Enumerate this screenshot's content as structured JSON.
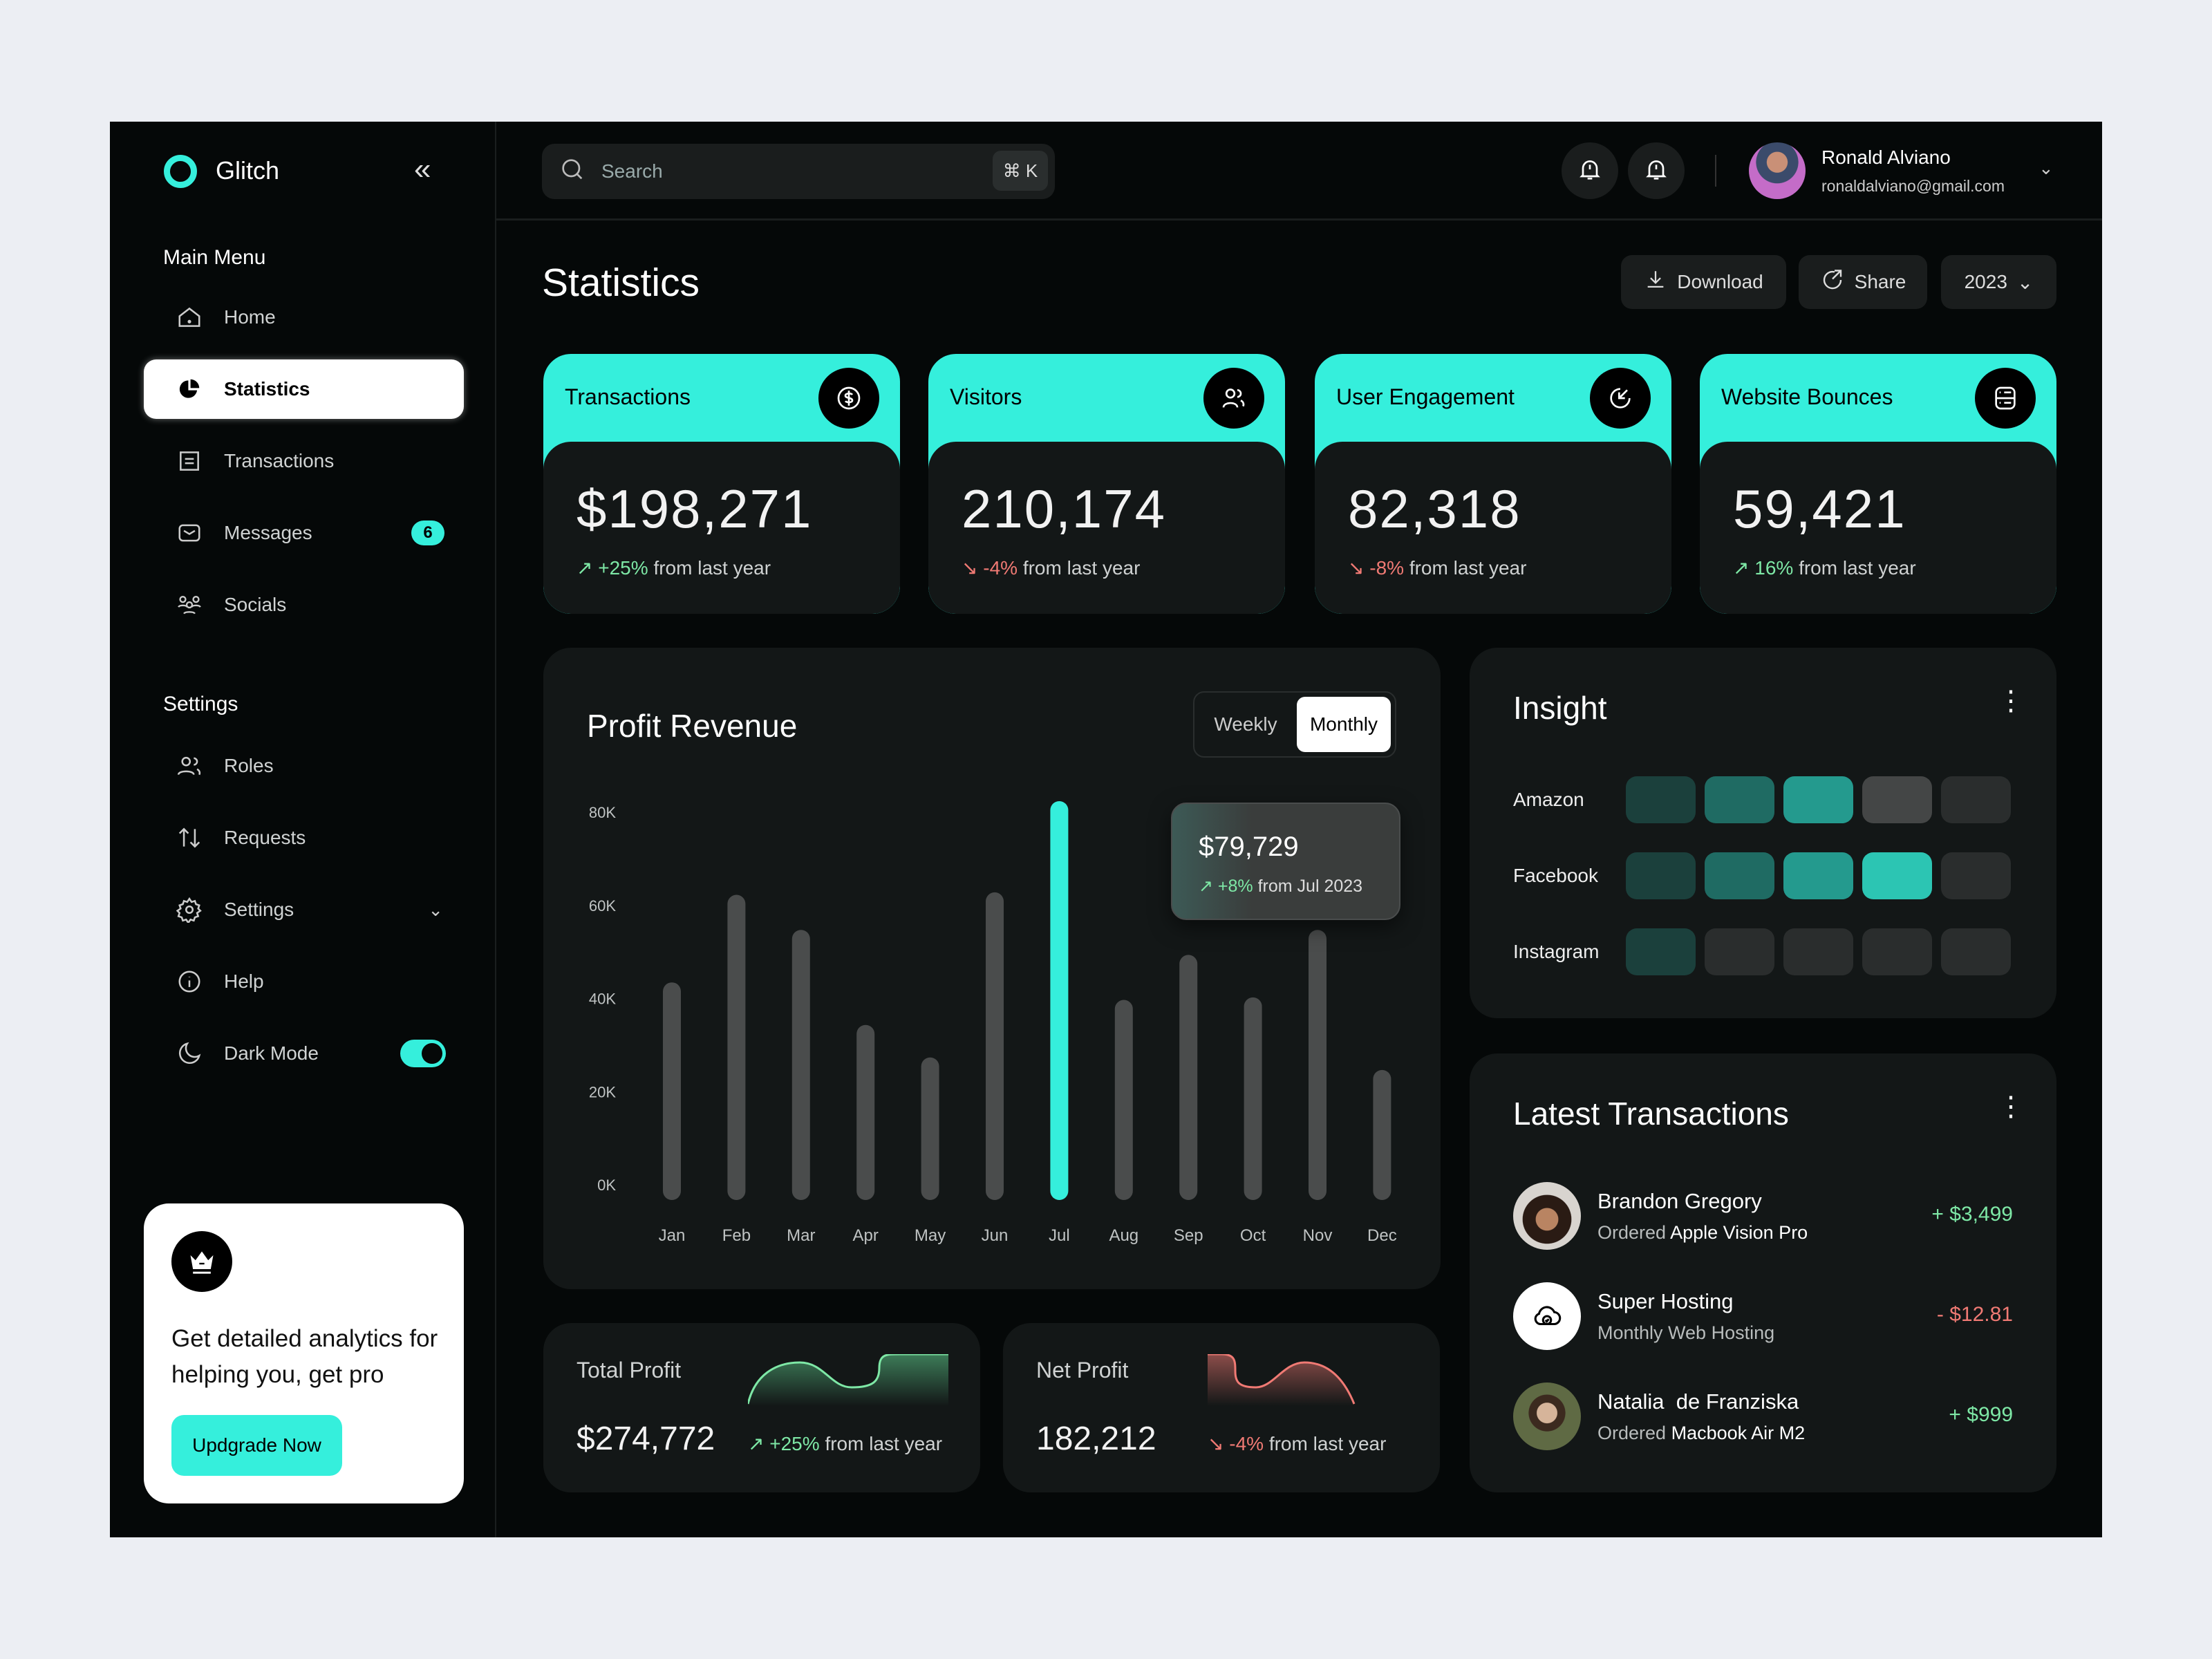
{
  "app": {
    "name": "Glitch"
  },
  "colors": {
    "accent": "#35efdc",
    "positive": "#7ee8a6",
    "negative": "#f07a74",
    "card": "#131717",
    "background": "#050808"
  },
  "sidebar": {
    "main_menu_title": "Main Menu",
    "main_items": [
      {
        "label": "Home",
        "icon": "home-icon"
      },
      {
        "label": "Statistics",
        "icon": "pie-chart-icon",
        "active": true
      },
      {
        "label": "Transactions",
        "icon": "receipt-icon"
      },
      {
        "label": "Messages",
        "icon": "mail-icon",
        "badge": "6"
      },
      {
        "label": "Socials",
        "icon": "community-icon"
      }
    ],
    "settings_title": "Settings",
    "settings_items": [
      {
        "label": "Roles",
        "icon": "users-icon"
      },
      {
        "label": "Requests",
        "icon": "arrows-up-down-icon"
      },
      {
        "label": "Settings",
        "icon": "gear-icon"
      },
      {
        "label": "Help",
        "icon": "info-icon"
      },
      {
        "label": "Dark Mode",
        "icon": "moon-icon",
        "toggle_on": true
      }
    ],
    "promo": {
      "text": "Get detailed analytics for helping you, get pro",
      "button": "Updgrade Now"
    }
  },
  "topbar": {
    "search_placeholder": "Search",
    "shortcut": "⌘ K",
    "user": {
      "name": "Ronald Alviano",
      "email": "ronaldalviano@gmail.com"
    }
  },
  "page": {
    "title": "Statistics",
    "download": "Download",
    "share": "Share",
    "year": "2023"
  },
  "stats": [
    {
      "label": "Transactions",
      "value": "$198,271",
      "change": "+25%",
      "suffix": "from last year",
      "trend": "up",
      "icon": "dollar-icon"
    },
    {
      "label": "Visitors",
      "value": "210,174",
      "change": "-4%",
      "suffix": "from last year",
      "trend": "down",
      "icon": "users-icon"
    },
    {
      "label": "User Engagement",
      "value": "82,318",
      "change": "-8%",
      "suffix": "from last year",
      "trend": "down",
      "icon": "engagement-icon"
    },
    {
      "label": "Website Bounces",
      "value": "59,421",
      "change": "16%",
      "suffix": "from last year",
      "trend": "up",
      "icon": "server-icon"
    }
  ],
  "profit_revenue": {
    "title": "Profit Revenue",
    "tabs": [
      "Weekly",
      "Monthly"
    ],
    "active_tab": "Monthly",
    "tooltip": {
      "value": "$79,729",
      "change": "+8%",
      "suffix": "from Jul 2023"
    }
  },
  "chart_data": {
    "type": "bar",
    "categories": [
      "Jan",
      "Feb",
      "Mar",
      "Apr",
      "May",
      "Jun",
      "Jul",
      "Aug",
      "Sep",
      "Oct",
      "Nov",
      "Dec"
    ],
    "values": [
      43500,
      61000,
      54000,
      35000,
      28500,
      61500,
      79729,
      40000,
      49000,
      40500,
      54000,
      26000
    ],
    "highlighted": "Jul",
    "yticks": [
      "0K",
      "20K",
      "40K",
      "60K",
      "80K"
    ],
    "ylim": [
      0,
      80000
    ],
    "grid": false
  },
  "insight": {
    "title": "Insight",
    "rows": [
      {
        "label": "Amazon",
        "levels": [
          1,
          2,
          3,
          "gray",
          "empty"
        ]
      },
      {
        "label": "Facebook",
        "levels": [
          1,
          2,
          3,
          4,
          "empty"
        ]
      },
      {
        "label": "Instagram",
        "levels": [
          1,
          "empty",
          "empty",
          "empty",
          "empty"
        ]
      }
    ],
    "level_colors": {
      "1": "#1b403c",
      "2": "#1f6b63",
      "3": "#249a8e",
      "4": "#2cc5b3",
      "gray": "#444646",
      "empty": "#2a2d2d"
    }
  },
  "latest_transactions": {
    "title": "Latest Transactions",
    "items": [
      {
        "name": "Brandon Gregory",
        "prefix": "Ordered",
        "item": "Apple Vision Pro",
        "amount": "+ $3,499",
        "trend": "up"
      },
      {
        "name": "Super Hosting",
        "prefix": "Monthly Web Hosting",
        "item": "",
        "amount": "- $12.81",
        "trend": "down"
      },
      {
        "name": "Natalia  de Franziska",
        "prefix": "Ordered",
        "item": "Macbook Air M2",
        "amount": "+ $999",
        "trend": "up"
      }
    ]
  },
  "total_profit": {
    "label": "Total Profit",
    "value": "$274,772",
    "change": "+25%",
    "suffix": "from last year"
  },
  "net_profit": {
    "label": "Net Profit",
    "value": "182,212",
    "change": "-4%",
    "suffix": "from last year"
  }
}
